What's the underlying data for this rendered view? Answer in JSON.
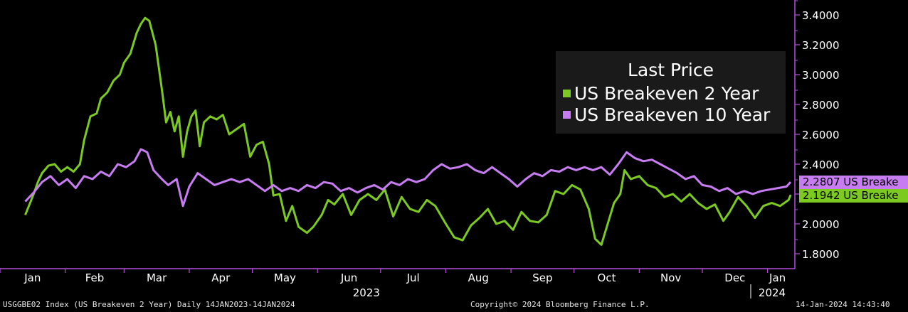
{
  "chart_data": {
    "type": "line",
    "title": "",
    "xlabel": "",
    "ylabel": "",
    "ylim": [
      1.7,
      3.5
    ],
    "xlim": [
      "2023-01-01",
      "2024-01-14"
    ],
    "y_ticks": [
      "1.8000",
      "2.0000",
      "2.2000",
      "2.4000",
      "2.6000",
      "2.8000",
      "3.0000",
      "3.2000",
      "3.4000"
    ],
    "x_ticks": [
      {
        "label": "Jan",
        "date": "2023-01-01"
      },
      {
        "label": "Feb",
        "date": "2023-02-01"
      },
      {
        "label": "Mar",
        "date": "2023-03-01"
      },
      {
        "label": "Apr",
        "date": "2023-04-01"
      },
      {
        "label": "May",
        "date": "2023-05-01"
      },
      {
        "label": "Jun",
        "date": "2023-06-01"
      },
      {
        "label": "Jul",
        "date": "2023-07-01"
      },
      {
        "label": "Aug",
        "date": "2023-08-01"
      },
      {
        "label": "Sep",
        "date": "2023-09-01"
      },
      {
        "label": "Oct",
        "date": "2023-10-01"
      },
      {
        "label": "Nov",
        "date": "2023-11-01"
      },
      {
        "label": "Dec",
        "date": "2023-12-01"
      },
      {
        "label": "Jan",
        "date": "2024-01-01"
      }
    ],
    "year_labels": [
      {
        "label": "2023",
        "date": "2023-07-01"
      },
      {
        "label": "2024",
        "date": "2024-01-01"
      }
    ],
    "grid": false,
    "legend_placement": "top-right",
    "legend_title": "Last Price",
    "series": [
      {
        "name": "US Breakeven 2 Year",
        "color": "#7cc91f",
        "last_label": "2.1942 US Breake",
        "points": [
          [
            "2023-01-13",
            2.06
          ],
          [
            "2023-01-17",
            2.2
          ],
          [
            "2023-01-19",
            2.28
          ],
          [
            "2023-01-21",
            2.34
          ],
          [
            "2023-01-24",
            2.39
          ],
          [
            "2023-01-27",
            2.4
          ],
          [
            "2023-01-30",
            2.35
          ],
          [
            "2023-02-02",
            2.38
          ],
          [
            "2023-02-05",
            2.35
          ],
          [
            "2023-02-08",
            2.4
          ],
          [
            "2023-02-10",
            2.56
          ],
          [
            "2023-02-13",
            2.72
          ],
          [
            "2023-02-16",
            2.74
          ],
          [
            "2023-02-18",
            2.84
          ],
          [
            "2023-02-21",
            2.88
          ],
          [
            "2023-02-24",
            2.96
          ],
          [
            "2023-02-27",
            3.0
          ],
          [
            "2023-03-01",
            3.08
          ],
          [
            "2023-03-04",
            3.14
          ],
          [
            "2023-03-07",
            3.28
          ],
          [
            "2023-03-09",
            3.34
          ],
          [
            "2023-03-11",
            3.38
          ],
          [
            "2023-03-13",
            3.36
          ],
          [
            "2023-03-16",
            3.2
          ],
          [
            "2023-03-19",
            2.9
          ],
          [
            "2023-03-21",
            2.68
          ],
          [
            "2023-03-23",
            2.75
          ],
          [
            "2023-03-25",
            2.62
          ],
          [
            "2023-03-27",
            2.72
          ],
          [
            "2023-03-29",
            2.45
          ],
          [
            "2023-03-31",
            2.62
          ],
          [
            "2023-04-02",
            2.72
          ],
          [
            "2023-04-04",
            2.76
          ],
          [
            "2023-04-06",
            2.52
          ],
          [
            "2023-04-08",
            2.68
          ],
          [
            "2023-04-11",
            2.72
          ],
          [
            "2023-04-14",
            2.7
          ],
          [
            "2023-04-17",
            2.73
          ],
          [
            "2023-04-20",
            2.6
          ],
          [
            "2023-04-24",
            2.64
          ],
          [
            "2023-04-27",
            2.67
          ],
          [
            "2023-04-30",
            2.45
          ],
          [
            "2023-05-03",
            2.53
          ],
          [
            "2023-05-06",
            2.55
          ],
          [
            "2023-05-09",
            2.4
          ],
          [
            "2023-05-11",
            2.19
          ],
          [
            "2023-05-14",
            2.2
          ],
          [
            "2023-05-17",
            2.02
          ],
          [
            "2023-05-20",
            2.12
          ],
          [
            "2023-05-23",
            1.98
          ],
          [
            "2023-05-27",
            1.94
          ],
          [
            "2023-05-30",
            1.98
          ],
          [
            "2023-06-03",
            2.06
          ],
          [
            "2023-06-06",
            2.16
          ],
          [
            "2023-06-09",
            2.13
          ],
          [
            "2023-06-13",
            2.2
          ],
          [
            "2023-06-17",
            2.06
          ],
          [
            "2023-06-21",
            2.16
          ],
          [
            "2023-06-25",
            2.2
          ],
          [
            "2023-06-29",
            2.16
          ],
          [
            "2023-07-03",
            2.23
          ],
          [
            "2023-07-07",
            2.05
          ],
          [
            "2023-07-11",
            2.18
          ],
          [
            "2023-07-15",
            2.1
          ],
          [
            "2023-07-19",
            2.08
          ],
          [
            "2023-07-23",
            2.16
          ],
          [
            "2023-07-27",
            2.12
          ],
          [
            "2023-08-01",
            2.0
          ],
          [
            "2023-08-05",
            1.91
          ],
          [
            "2023-08-09",
            1.89
          ],
          [
            "2023-08-13",
            1.99
          ],
          [
            "2023-08-17",
            2.04
          ],
          [
            "2023-08-21",
            2.1
          ],
          [
            "2023-08-25",
            2.0
          ],
          [
            "2023-08-29",
            2.02
          ],
          [
            "2023-09-02",
            1.96
          ],
          [
            "2023-09-06",
            2.08
          ],
          [
            "2023-09-10",
            2.02
          ],
          [
            "2023-09-14",
            2.01
          ],
          [
            "2023-09-18",
            2.06
          ],
          [
            "2023-09-22",
            2.22
          ],
          [
            "2023-09-26",
            2.2
          ],
          [
            "2023-09-30",
            2.26
          ],
          [
            "2023-10-04",
            2.23
          ],
          [
            "2023-10-08",
            2.1
          ],
          [
            "2023-10-11",
            1.9
          ],
          [
            "2023-10-14",
            1.86
          ],
          [
            "2023-10-17",
            2.0
          ],
          [
            "2023-10-20",
            2.14
          ],
          [
            "2023-10-23",
            2.2
          ],
          [
            "2023-10-25",
            2.36
          ],
          [
            "2023-10-28",
            2.3
          ],
          [
            "2023-11-01",
            2.32
          ],
          [
            "2023-11-05",
            2.26
          ],
          [
            "2023-11-09",
            2.24
          ],
          [
            "2023-11-13",
            2.18
          ],
          [
            "2023-11-17",
            2.2
          ],
          [
            "2023-11-21",
            2.15
          ],
          [
            "2023-11-25",
            2.2
          ],
          [
            "2023-11-29",
            2.14
          ],
          [
            "2023-12-03",
            2.1
          ],
          [
            "2023-12-07",
            2.13
          ],
          [
            "2023-12-11",
            2.02
          ],
          [
            "2023-12-14",
            2.08
          ],
          [
            "2023-12-18",
            2.18
          ],
          [
            "2023-12-22",
            2.12
          ],
          [
            "2023-12-26",
            2.04
          ],
          [
            "2023-12-30",
            2.12
          ],
          [
            "2024-01-03",
            2.14
          ],
          [
            "2024-01-07",
            2.12
          ],
          [
            "2024-01-11",
            2.16
          ],
          [
            "2024-01-12",
            2.1942
          ]
        ]
      },
      {
        "name": "US Breakeven 10 Year",
        "color": "#c77cf2",
        "last_label": "2.2807 US Breake",
        "points": [
          [
            "2023-01-13",
            2.15
          ],
          [
            "2023-01-17",
            2.21
          ],
          [
            "2023-01-21",
            2.28
          ],
          [
            "2023-01-25",
            2.32
          ],
          [
            "2023-01-29",
            2.26
          ],
          [
            "2023-02-02",
            2.3
          ],
          [
            "2023-02-06",
            2.24
          ],
          [
            "2023-02-10",
            2.32
          ],
          [
            "2023-02-14",
            2.3
          ],
          [
            "2023-02-18",
            2.35
          ],
          [
            "2023-02-22",
            2.32
          ],
          [
            "2023-02-26",
            2.4
          ],
          [
            "2023-03-02",
            2.38
          ],
          [
            "2023-03-06",
            2.42
          ],
          [
            "2023-03-09",
            2.5
          ],
          [
            "2023-03-12",
            2.48
          ],
          [
            "2023-03-15",
            2.36
          ],
          [
            "2023-03-19",
            2.3
          ],
          [
            "2023-03-22",
            2.26
          ],
          [
            "2023-03-26",
            2.3
          ],
          [
            "2023-03-29",
            2.12
          ],
          [
            "2023-04-01",
            2.25
          ],
          [
            "2023-04-05",
            2.34
          ],
          [
            "2023-04-09",
            2.3
          ],
          [
            "2023-04-13",
            2.26
          ],
          [
            "2023-04-17",
            2.28
          ],
          [
            "2023-04-21",
            2.3
          ],
          [
            "2023-04-25",
            2.28
          ],
          [
            "2023-04-29",
            2.3
          ],
          [
            "2023-05-03",
            2.26
          ],
          [
            "2023-05-07",
            2.22
          ],
          [
            "2023-05-11",
            2.26
          ],
          [
            "2023-05-15",
            2.22
          ],
          [
            "2023-05-19",
            2.24
          ],
          [
            "2023-05-23",
            2.22
          ],
          [
            "2023-05-27",
            2.26
          ],
          [
            "2023-05-31",
            2.24
          ],
          [
            "2023-06-04",
            2.28
          ],
          [
            "2023-06-08",
            2.27
          ],
          [
            "2023-06-12",
            2.22
          ],
          [
            "2023-06-16",
            2.24
          ],
          [
            "2023-06-20",
            2.21
          ],
          [
            "2023-06-24",
            2.24
          ],
          [
            "2023-06-28",
            2.26
          ],
          [
            "2023-07-02",
            2.23
          ],
          [
            "2023-07-06",
            2.28
          ],
          [
            "2023-07-10",
            2.26
          ],
          [
            "2023-07-14",
            2.3
          ],
          [
            "2023-07-18",
            2.28
          ],
          [
            "2023-07-22",
            2.3
          ],
          [
            "2023-07-26",
            2.36
          ],
          [
            "2023-07-30",
            2.4
          ],
          [
            "2023-08-03",
            2.37
          ],
          [
            "2023-08-07",
            2.38
          ],
          [
            "2023-08-11",
            2.4
          ],
          [
            "2023-08-15",
            2.36
          ],
          [
            "2023-08-19",
            2.34
          ],
          [
            "2023-08-23",
            2.38
          ],
          [
            "2023-08-27",
            2.34
          ],
          [
            "2023-08-31",
            2.3
          ],
          [
            "2023-09-04",
            2.25
          ],
          [
            "2023-09-08",
            2.3
          ],
          [
            "2023-09-12",
            2.34
          ],
          [
            "2023-09-16",
            2.32
          ],
          [
            "2023-09-20",
            2.36
          ],
          [
            "2023-09-24",
            2.35
          ],
          [
            "2023-09-28",
            2.38
          ],
          [
            "2023-10-02",
            2.36
          ],
          [
            "2023-10-06",
            2.38
          ],
          [
            "2023-10-10",
            2.36
          ],
          [
            "2023-10-14",
            2.38
          ],
          [
            "2023-10-18",
            2.33
          ],
          [
            "2023-10-22",
            2.4
          ],
          [
            "2023-10-26",
            2.48
          ],
          [
            "2023-10-30",
            2.44
          ],
          [
            "2023-11-03",
            2.42
          ],
          [
            "2023-11-07",
            2.43
          ],
          [
            "2023-11-11",
            2.4
          ],
          [
            "2023-11-15",
            2.37
          ],
          [
            "2023-11-19",
            2.34
          ],
          [
            "2023-11-23",
            2.3
          ],
          [
            "2023-11-27",
            2.32
          ],
          [
            "2023-12-01",
            2.26
          ],
          [
            "2023-12-05",
            2.25
          ],
          [
            "2023-12-09",
            2.22
          ],
          [
            "2023-12-13",
            2.24
          ],
          [
            "2023-12-17",
            2.2
          ],
          [
            "2023-12-21",
            2.22
          ],
          [
            "2023-12-25",
            2.2
          ],
          [
            "2023-12-29",
            2.22
          ],
          [
            "2024-01-02",
            2.23
          ],
          [
            "2024-01-06",
            2.24
          ],
          [
            "2024-01-10",
            2.25
          ],
          [
            "2024-01-12",
            2.2807
          ]
        ]
      }
    ]
  },
  "footer": {
    "left": "USGGBE02 Index (US Breakeven 2 Year)  Daily 14JAN2023-14JAN2024",
    "center": "Copyright© 2024 Bloomberg Finance L.P.",
    "right": "14-Jan-2024 14:43:40"
  },
  "colors": {
    "background": "#000000",
    "axis": "#b44ed9",
    "legend_bg": "#1a1a1a"
  }
}
